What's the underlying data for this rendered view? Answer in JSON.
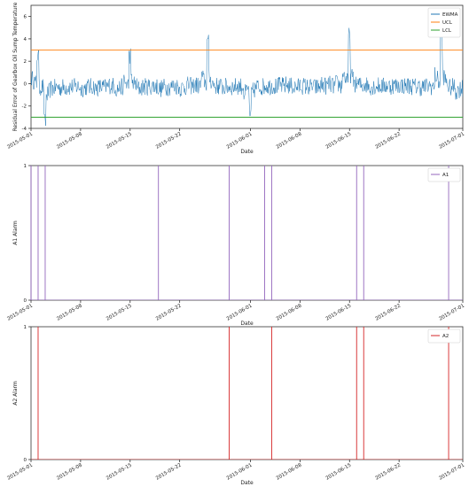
{
  "chart_data": [
    {
      "type": "line",
      "xlabel": "Date",
      "ylabel": "Residual Error of Gearbox Oil Sump Temperature",
      "xlim": [
        "2015-05-01",
        "2015-07-01"
      ],
      "ylim": [
        -4,
        7
      ],
      "xticks": [
        "2015-05-01",
        "2015-05-08",
        "2015-05-15",
        "2015-05-22",
        "2015-06-01",
        "2015-06-08",
        "2015-06-15",
        "2015-06-22",
        "2015-07-01"
      ],
      "yticks": [
        -4,
        -2,
        0,
        2,
        4,
        6
      ],
      "legend": "top-right",
      "series": [
        {
          "name": "EWMA",
          "color": "#1f77b4",
          "x": [
            "2015-05-01",
            "2015-05-02",
            "2015-05-03",
            "2015-05-04",
            "2015-05-05",
            "2015-05-06",
            "2015-05-07",
            "2015-05-08",
            "2015-05-09",
            "2015-05-10",
            "2015-05-11",
            "2015-05-12",
            "2015-05-13",
            "2015-05-14",
            "2015-05-15",
            "2015-05-16",
            "2015-05-17",
            "2015-05-18",
            "2015-05-19",
            "2015-05-20",
            "2015-05-21",
            "2015-05-22",
            "2015-05-23",
            "2015-05-24",
            "2015-05-25",
            "2015-05-26",
            "2015-05-27",
            "2015-05-28",
            "2015-05-29",
            "2015-05-30",
            "2015-05-31",
            "2015-06-01",
            "2015-06-02",
            "2015-06-03",
            "2015-06-04",
            "2015-06-05",
            "2015-06-06",
            "2015-06-07",
            "2015-06-08",
            "2015-06-09",
            "2015-06-10",
            "2015-06-11",
            "2015-06-12",
            "2015-06-13",
            "2015-06-14",
            "2015-06-15",
            "2015-06-16",
            "2015-06-17",
            "2015-06-18",
            "2015-06-19",
            "2015-06-20",
            "2015-06-21",
            "2015-06-22",
            "2015-06-23",
            "2015-06-24",
            "2015-06-25",
            "2015-06-26",
            "2015-06-27",
            "2015-06-28",
            "2015-06-29",
            "2015-06-30",
            "2015-07-01"
          ],
          "values": [
            0.5,
            2.8,
            -3.2,
            -1.0,
            0.2,
            -0.8,
            0.4,
            -0.6,
            -0.5,
            0.3,
            -1.2,
            0.8,
            -0.3,
            -0.8,
            2.8,
            -0.4,
            -0.6,
            0.5,
            -0.2,
            -1.0,
            0.6,
            -0.5,
            -0.3,
            0.8,
            -0.1,
            4.0,
            -0.3,
            0.5,
            -0.8,
            0.6,
            -0.4,
            -2.8,
            0.2,
            -0.4,
            0.8,
            -0.5,
            0.9,
            -0.3,
            0.0,
            0.3,
            -0.6,
            0.2,
            0.5,
            0.3,
            0.9,
            4.5,
            0.5,
            0.5,
            0.5,
            -0.5,
            0.8,
            -0.4,
            0.9,
            -0.2,
            0.6,
            -0.7,
            0.4,
            -0.3,
            4.7,
            0.3,
            -0.8,
            -1.2
          ]
        },
        {
          "name": "UCL",
          "color": "#ff7f0e",
          "values": [
            3,
            3
          ]
        },
        {
          "name": "LCL",
          "color": "#2ca02c",
          "values": [
            -3,
            -3
          ]
        }
      ]
    },
    {
      "type": "line",
      "xlabel": "Date",
      "ylabel": "A1 Alarm",
      "xlim": [
        "2015-05-01",
        "2015-07-01"
      ],
      "ylim": [
        0,
        1
      ],
      "xticks": [
        "2015-05-01",
        "2015-05-08",
        "2015-05-15",
        "2015-05-22",
        "2015-06-01",
        "2015-06-08",
        "2015-06-15",
        "2015-06-22",
        "2015-07-01"
      ],
      "yticks": [
        0,
        1
      ],
      "legend": "top-right",
      "series": [
        {
          "name": "A1",
          "color": "#9467bd",
          "alarm_dates": [
            "2015-05-01",
            "2015-05-02",
            "2015-05-03",
            "2015-05-19",
            "2015-05-29",
            "2015-06-03",
            "2015-06-04",
            "2015-06-16",
            "2015-06-17",
            "2015-06-29"
          ]
        }
      ]
    },
    {
      "type": "line",
      "xlabel": "Date",
      "ylabel": "A2 Alarm",
      "xlim": [
        "2015-05-01",
        "2015-07-01"
      ],
      "ylim": [
        0,
        1
      ],
      "xticks": [
        "2015-05-01",
        "2015-05-08",
        "2015-05-15",
        "2015-05-22",
        "2015-06-01",
        "2015-06-08",
        "2015-06-15",
        "2015-06-22",
        "2015-07-01"
      ],
      "yticks": [
        0,
        1
      ],
      "legend": "top-right",
      "series": [
        {
          "name": "A2",
          "color": "#d62728",
          "alarm_dates": [
            "2015-05-02",
            "2015-05-29",
            "2015-06-04",
            "2015-06-16",
            "2015-06-17",
            "2015-06-29"
          ]
        }
      ]
    }
  ]
}
